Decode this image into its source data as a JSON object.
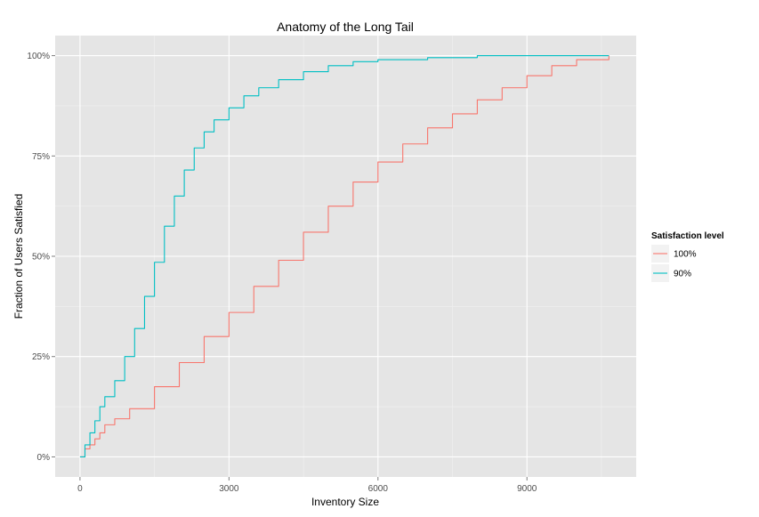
{
  "chart_data": {
    "type": "line",
    "title": "Anatomy of the Long Tail",
    "xlabel": "Inventory Size",
    "ylabel": "Fraction of Users Satisfied",
    "xlim": [
      -500,
      11200
    ],
    "ylim": [
      -0.05,
      1.05
    ],
    "x_ticks": [
      0,
      3000,
      6000,
      9000
    ],
    "x_tick_labels": [
      "0",
      "3000",
      "6000",
      "9000"
    ],
    "y_ticks": [
      0,
      0.25,
      0.5,
      0.75,
      1.0
    ],
    "y_tick_labels": [
      "0%",
      "25%",
      "50%",
      "75%",
      "100%"
    ],
    "grid": true,
    "legend": {
      "title": "Satisfaction level",
      "position": "right"
    },
    "series": [
      {
        "name": "100%",
        "color": "#F8766D",
        "x": [
          0,
          100,
          200,
          300,
          400,
          500,
          700,
          1000,
          1500,
          2000,
          2500,
          3000,
          3500,
          4000,
          4500,
          5000,
          5500,
          6000,
          6500,
          7000,
          7500,
          8000,
          8500,
          9000,
          9500,
          10000,
          10650
        ],
        "y": [
          0,
          0.02,
          0.03,
          0.045,
          0.06,
          0.08,
          0.095,
          0.12,
          0.175,
          0.235,
          0.3,
          0.36,
          0.425,
          0.49,
          0.56,
          0.625,
          0.685,
          0.735,
          0.78,
          0.82,
          0.855,
          0.89,
          0.92,
          0.95,
          0.975,
          0.99,
          1.0
        ]
      },
      {
        "name": "90%",
        "color": "#00BFC4",
        "x": [
          0,
          100,
          200,
          300,
          400,
          500,
          700,
          900,
          1100,
          1300,
          1500,
          1700,
          1900,
          2100,
          2300,
          2500,
          2700,
          3000,
          3300,
          3600,
          4000,
          4500,
          5000,
          5500,
          6000,
          7000,
          8000,
          9000,
          10650
        ],
        "y": [
          0,
          0.03,
          0.06,
          0.09,
          0.125,
          0.15,
          0.19,
          0.25,
          0.32,
          0.4,
          0.485,
          0.575,
          0.65,
          0.715,
          0.77,
          0.81,
          0.84,
          0.87,
          0.9,
          0.92,
          0.94,
          0.96,
          0.975,
          0.985,
          0.99,
          0.995,
          1.0,
          1.0,
          1.0
        ]
      }
    ]
  }
}
